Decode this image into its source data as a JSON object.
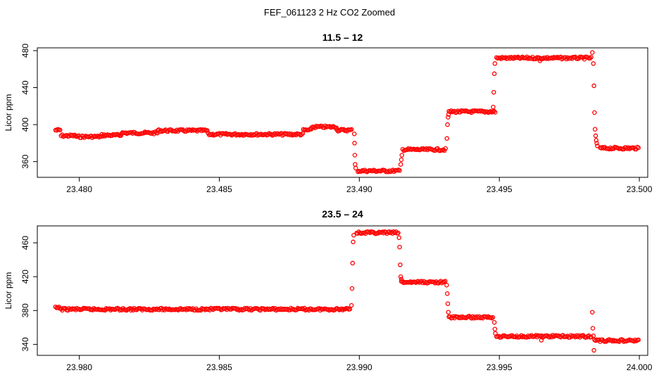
{
  "figure": {
    "title": "FEF_061123  2 Hz CO2 Zoomed"
  },
  "colors": {
    "points": "#ff0000"
  },
  "chart_data": [
    {
      "type": "scatter",
      "title": "11.5 – 12",
      "xlabel": "",
      "ylabel": "Licor ppm",
      "xlim": [
        23.4785,
        23.5003
      ],
      "ylim": [
        343,
        483
      ],
      "xticks": [
        23.48,
        23.485,
        23.49,
        23.495,
        23.5
      ],
      "xtick_labels": [
        "23.480",
        "23.485",
        "23.490",
        "23.495",
        "23.500"
      ],
      "yticks": [
        360,
        400,
        440,
        480
      ],
      "ytick_labels": [
        "360",
        "400",
        "440",
        "480"
      ],
      "grid": false,
      "legend": "none",
      "marker": "open-circle",
      "segments": [
        {
          "x0": 23.47915,
          "x1": 23.47935,
          "y": 394
        },
        {
          "x0": 23.47935,
          "x1": 23.4799,
          "y": 388
        },
        {
          "x0": 23.4799,
          "x1": 23.4808,
          "y": 387
        },
        {
          "x0": 23.4808,
          "x1": 23.4815,
          "y": 388.5
        },
        {
          "x0": 23.4815,
          "x1": 23.4828,
          "y": 391
        },
        {
          "x0": 23.4828,
          "x1": 23.4846,
          "y": 393.5
        },
        {
          "x0": 23.4846,
          "x1": 23.488,
          "y": 389.5
        },
        {
          "x0": 23.488,
          "x1": 23.4883,
          "y": 394
        },
        {
          "x0": 23.4883,
          "x1": 23.4892,
          "y": 397.5
        },
        {
          "x0": 23.4892,
          "x1": 23.48975,
          "y": 394
        },
        {
          "x0": 23.48995,
          "x1": 23.49145,
          "y": 350
        },
        {
          "x0": 23.49155,
          "x1": 23.4931,
          "y": 373
        },
        {
          "x0": 23.4932,
          "x1": 23.49485,
          "y": 414
        },
        {
          "x0": 23.4949,
          "x1": 23.4983,
          "y": 472
        },
        {
          "x0": 23.4986,
          "x1": 23.5,
          "y": 374.5
        }
      ],
      "points": [
        [
          23.48982,
          390
        ],
        [
          23.48983,
          380
        ],
        [
          23.48984,
          367
        ],
        [
          23.48985,
          357
        ],
        [
          23.48987,
          353
        ],
        [
          23.49148,
          357
        ],
        [
          23.4915,
          362
        ],
        [
          23.49152,
          367
        ],
        [
          23.49313,
          385
        ],
        [
          23.49315,
          400
        ],
        [
          23.49317,
          408
        ],
        [
          23.49319,
          411
        ],
        [
          23.49478,
          419
        ],
        [
          23.4948,
          435
        ],
        [
          23.49482,
          455
        ],
        [
          23.49484,
          466
        ],
        [
          23.49645,
          469
        ],
        [
          23.49832,
          478
        ],
        [
          23.49836,
          466
        ],
        [
          23.49838,
          442
        ],
        [
          23.4984,
          413
        ],
        [
          23.49842,
          395
        ],
        [
          23.49844,
          388
        ],
        [
          23.49846,
          383
        ],
        [
          23.49848,
          380
        ],
        [
          23.4985,
          377
        ]
      ]
    },
    {
      "type": "scatter",
      "title": "23.5 – 24",
      "xlabel": "",
      "ylabel": "Licor ppm",
      "xlim": [
        23.9785,
        24.0003
      ],
      "ylim": [
        327,
        480
      ],
      "xticks": [
        23.98,
        23.985,
        23.99,
        23.995,
        24.0
      ],
      "xtick_labels": [
        "23.980",
        "23.985",
        "23.990",
        "23.995",
        "24.000"
      ],
      "yticks": [
        340,
        380,
        420,
        460
      ],
      "ytick_labels": [
        "340",
        "380",
        "420",
        "460"
      ],
      "grid": false,
      "legend": "none",
      "marker": "open-circle",
      "segments": [
        {
          "x0": 23.97915,
          "x1": 23.97935,
          "y": 383
        },
        {
          "x0": 23.97935,
          "x1": 23.9895,
          "y": 381.5
        },
        {
          "x0": 23.9895,
          "x1": 23.9897,
          "y": 382.5
        },
        {
          "x0": 23.9899,
          "x1": 23.9914,
          "y": 472
        },
        {
          "x0": 23.9915,
          "x1": 23.9931,
          "y": 413.5
        },
        {
          "x0": 23.9932,
          "x1": 23.9948,
          "y": 372
        },
        {
          "x0": 23.9949,
          "x1": 23.9983,
          "y": 349.5
        },
        {
          "x0": 23.9984,
          "x1": 24.0,
          "y": 344.5
        }
      ],
      "points": [
        [
          23.98972,
          386
        ],
        [
          23.98974,
          406
        ],
        [
          23.98976,
          436
        ],
        [
          23.98978,
          461
        ],
        [
          23.9898,
          469
        ],
        [
          23.99142,
          466
        ],
        [
          23.99144,
          455
        ],
        [
          23.99146,
          434
        ],
        [
          23.99148,
          420
        ],
        [
          23.9915,
          417
        ],
        [
          23.99312,
          410
        ],
        [
          23.99314,
          400
        ],
        [
          23.99316,
          388
        ],
        [
          23.99318,
          378
        ],
        [
          23.99482,
          366
        ],
        [
          23.99484,
          358
        ],
        [
          23.99486,
          353
        ],
        [
          23.9965,
          345
        ],
        [
          23.99832,
          378
        ],
        [
          23.99834,
          359
        ],
        [
          23.99836,
          350
        ],
        [
          23.99838,
          333
        ]
      ]
    }
  ]
}
